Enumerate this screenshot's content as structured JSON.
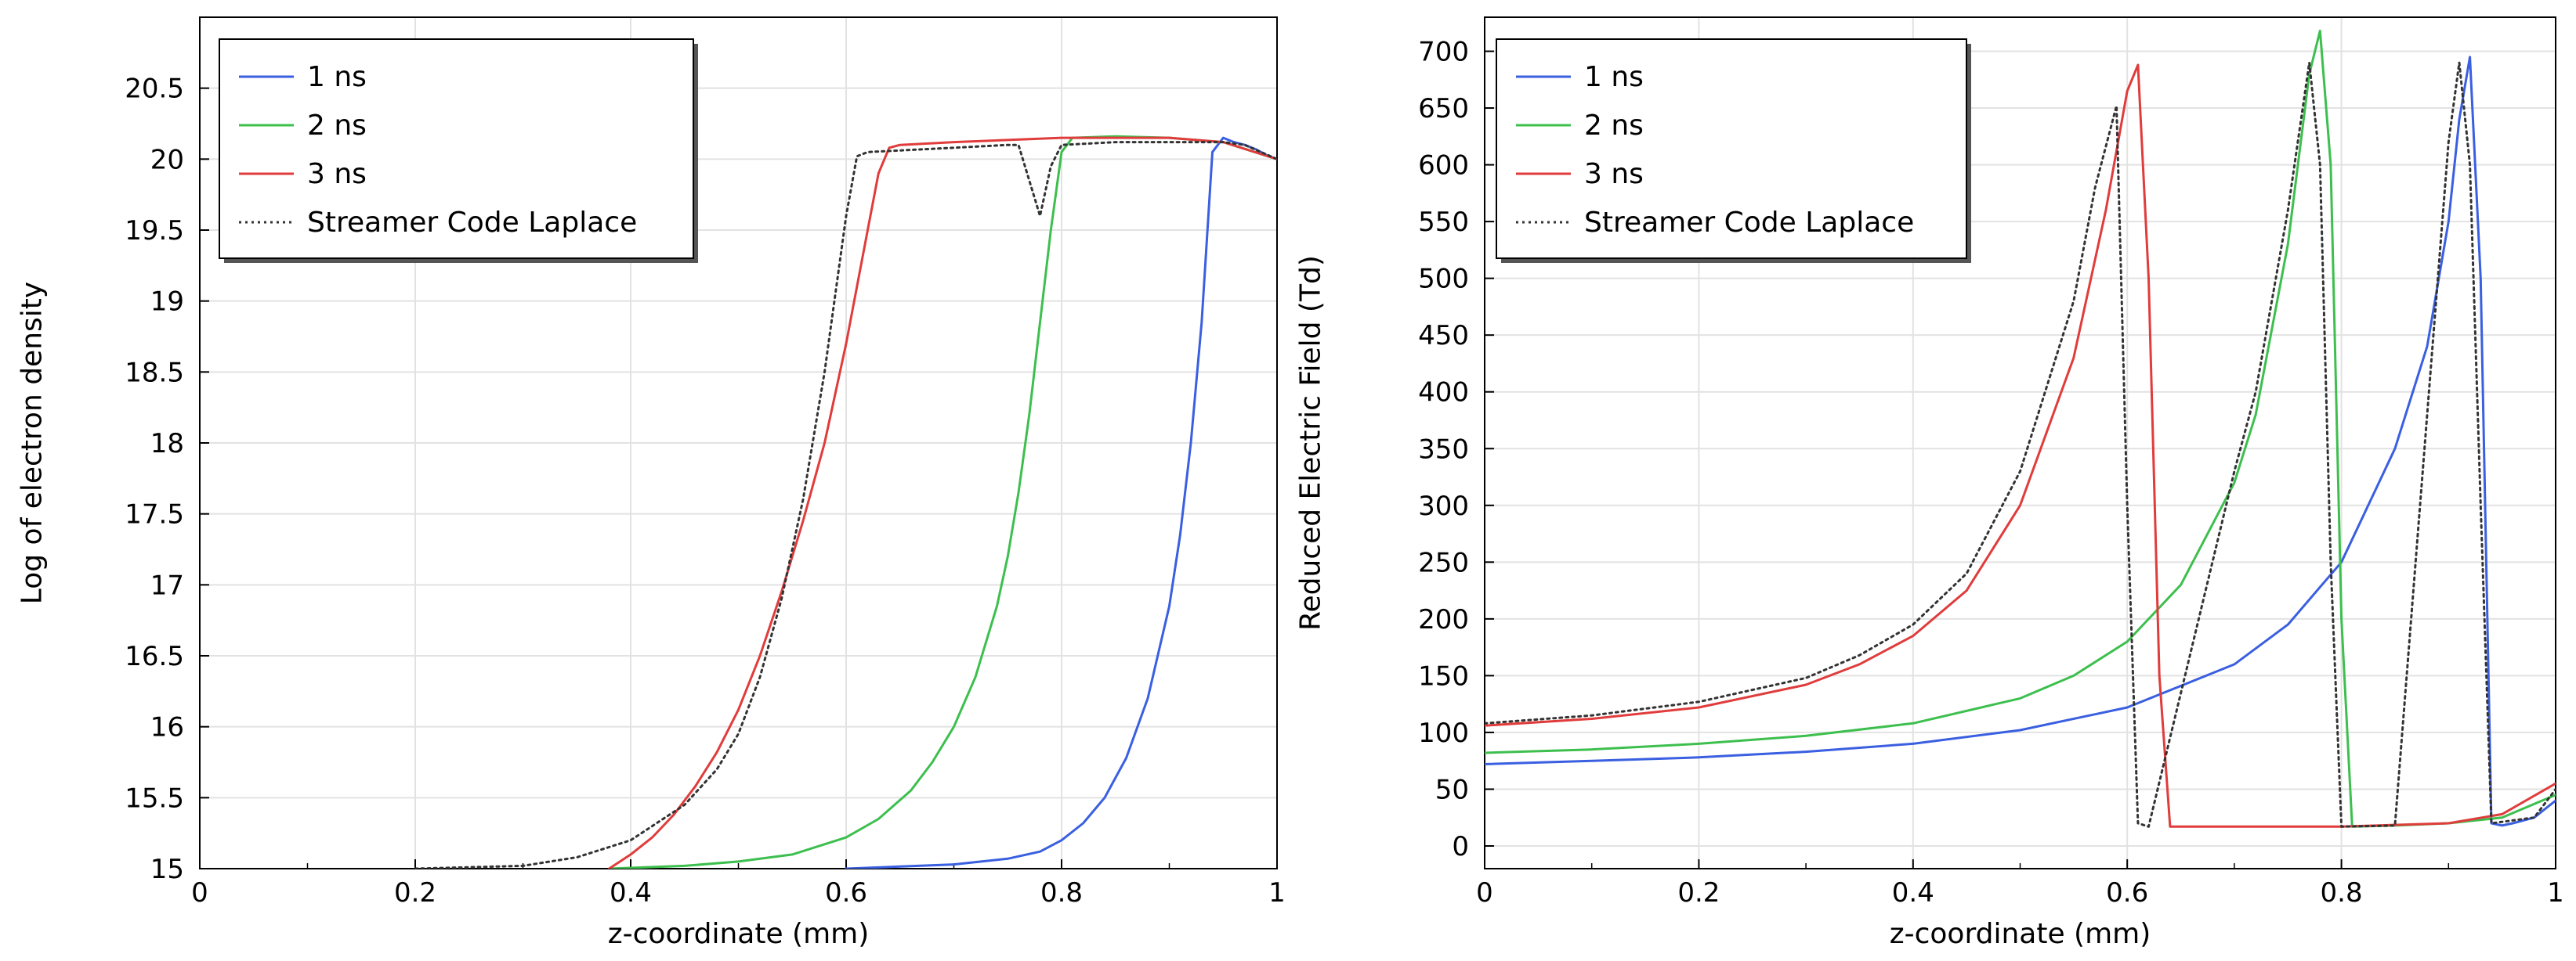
{
  "chart_data": [
    {
      "type": "line",
      "xlabel": "z-coordinate (mm)",
      "ylabel": "Log of electron density",
      "xlim": [
        0,
        1
      ],
      "ylim": [
        15,
        21
      ],
      "xticks": [
        "0",
        "0.2",
        "0.4",
        "0.6",
        "0.8",
        "1"
      ],
      "yticks": [
        "15",
        "15.5",
        "16",
        "16.5",
        "17",
        "17.5",
        "18",
        "18.5",
        "19",
        "19.5",
        "20",
        "20.5"
      ],
      "grid": true,
      "legend_position": "top-left",
      "series": [
        {
          "name": "1 ns",
          "color": "#3a5fe0",
          "dash": "solid",
          "x": [
            0.6,
            0.7,
            0.75,
            0.78,
            0.8,
            0.82,
            0.84,
            0.86,
            0.88,
            0.9,
            0.91,
            0.92,
            0.93,
            0.94,
            0.95,
            0.96,
            0.97,
            0.98,
            0.99,
            1.0
          ],
          "y": [
            15.0,
            15.03,
            15.07,
            15.12,
            15.2,
            15.32,
            15.5,
            15.78,
            16.2,
            16.85,
            17.35,
            18.0,
            18.85,
            20.05,
            20.15,
            20.12,
            20.1,
            20.07,
            20.03,
            20.0
          ]
        },
        {
          "name": "2 ns",
          "color": "#3dbf4e",
          "dash": "solid",
          "x": [
            0.38,
            0.45,
            0.5,
            0.55,
            0.6,
            0.63,
            0.66,
            0.68,
            0.7,
            0.72,
            0.74,
            0.75,
            0.76,
            0.77,
            0.78,
            0.79,
            0.8,
            0.81,
            0.85,
            0.9,
            0.95,
            1.0
          ],
          "y": [
            15.0,
            15.02,
            15.05,
            15.1,
            15.22,
            15.35,
            15.55,
            15.75,
            16.0,
            16.35,
            16.85,
            17.2,
            17.65,
            18.2,
            18.85,
            19.5,
            20.05,
            20.15,
            20.16,
            20.15,
            20.12,
            20.0
          ]
        },
        {
          "name": "3 ns",
          "color": "#e03c3c",
          "dash": "solid",
          "x": [
            0.38,
            0.4,
            0.42,
            0.44,
            0.46,
            0.48,
            0.5,
            0.52,
            0.54,
            0.56,
            0.58,
            0.6,
            0.62,
            0.63,
            0.64,
            0.65,
            0.7,
            0.8,
            0.9,
            0.95,
            1.0
          ],
          "y": [
            15.0,
            15.1,
            15.22,
            15.38,
            15.58,
            15.82,
            16.12,
            16.5,
            16.95,
            17.45,
            18.0,
            18.7,
            19.5,
            19.9,
            20.08,
            20.1,
            20.12,
            20.15,
            20.15,
            20.12,
            20.0
          ]
        },
        {
          "name": "Streamer Code Laplace",
          "color": "#333333",
          "dash": "dotted",
          "x": [
            0.2,
            0.3,
            0.35,
            0.4,
            0.45,
            0.48,
            0.5,
            0.52,
            0.54,
            0.56,
            0.58,
            0.6,
            0.61,
            0.62,
            0.7,
            0.75,
            0.76,
            0.78,
            0.79,
            0.8,
            0.85,
            0.86,
            0.88,
            0.9,
            0.91,
            0.92,
            0.93,
            0.94,
            0.95,
            0.97,
            1.0
          ],
          "y": [
            15.0,
            15.02,
            15.08,
            15.2,
            15.45,
            15.7,
            15.95,
            16.35,
            16.9,
            17.6,
            18.5,
            19.6,
            20.02,
            20.05,
            20.08,
            20.1,
            20.1,
            19.6,
            19.95,
            20.1,
            20.12,
            20.12,
            20.12,
            20.12,
            20.12,
            20.12,
            20.12,
            20.12,
            20.12,
            20.1,
            20.0
          ]
        }
      ]
    },
    {
      "type": "line",
      "xlabel": "z-coordinate (mm)",
      "ylabel": "Reduced Electric Field (Td)",
      "xlim": [
        0,
        1
      ],
      "ylim": [
        -20,
        730
      ],
      "xticks": [
        "0",
        "0.2",
        "0.4",
        "0.6",
        "0.8",
        "1"
      ],
      "yticks": [
        "0",
        "50",
        "100",
        "150",
        "200",
        "250",
        "300",
        "350",
        "400",
        "450",
        "500",
        "550",
        "600",
        "650",
        "700"
      ],
      "grid": true,
      "legend_position": "top-left",
      "series": [
        {
          "name": "1 ns",
          "color": "#3a5fe0",
          "dash": "solid",
          "x": [
            0.0,
            0.1,
            0.2,
            0.3,
            0.4,
            0.5,
            0.6,
            0.7,
            0.75,
            0.8,
            0.85,
            0.88,
            0.9,
            0.91,
            0.92,
            0.93,
            0.94,
            0.95,
            0.96,
            0.98,
            1.0
          ],
          "y": [
            72,
            75,
            78,
            83,
            90,
            102,
            122,
            160,
            195,
            250,
            350,
            440,
            550,
            640,
            695,
            500,
            20,
            18,
            20,
            25,
            40
          ]
        },
        {
          "name": "2 ns",
          "color": "#3dbf4e",
          "dash": "solid",
          "x": [
            0.0,
            0.1,
            0.2,
            0.3,
            0.4,
            0.5,
            0.55,
            0.6,
            0.65,
            0.7,
            0.72,
            0.75,
            0.77,
            0.78,
            0.79,
            0.8,
            0.81,
            0.85,
            0.9,
            0.95,
            1.0
          ],
          "y": [
            82,
            85,
            90,
            97,
            108,
            130,
            150,
            180,
            230,
            320,
            380,
            530,
            680,
            718,
            600,
            200,
            17,
            18,
            20,
            25,
            45
          ]
        },
        {
          "name": "3 ns",
          "color": "#e03c3c",
          "dash": "solid",
          "x": [
            0.0,
            0.1,
            0.2,
            0.3,
            0.35,
            0.4,
            0.45,
            0.5,
            0.55,
            0.58,
            0.6,
            0.61,
            0.62,
            0.63,
            0.64,
            0.65,
            0.7,
            0.8,
            0.9,
            0.95,
            1.0
          ],
          "y": [
            106,
            112,
            122,
            142,
            160,
            185,
            225,
            300,
            430,
            560,
            665,
            688,
            500,
            150,
            17,
            17,
            17,
            17,
            20,
            28,
            55
          ]
        },
        {
          "name": "Streamer Code Laplace",
          "color": "#333333",
          "dash": "dotted",
          "x": [
            0.0,
            0.1,
            0.2,
            0.3,
            0.35,
            0.4,
            0.45,
            0.5,
            0.55,
            0.57,
            0.59,
            0.6,
            0.61,
            0.62,
            0.7,
            0.72,
            0.75,
            0.77,
            0.78,
            0.79,
            0.8,
            0.85,
            0.9,
            0.91,
            0.92,
            0.93,
            0.94,
            0.98,
            1.0
          ],
          "y": [
            108,
            115,
            127,
            148,
            168,
            195,
            240,
            330,
            480,
            580,
            652,
            300,
            20,
            17,
            330,
            400,
            560,
            690,
            600,
            250,
            17,
            18,
            620,
            690,
            600,
            300,
            20,
            25,
            50
          ]
        }
      ]
    }
  ]
}
